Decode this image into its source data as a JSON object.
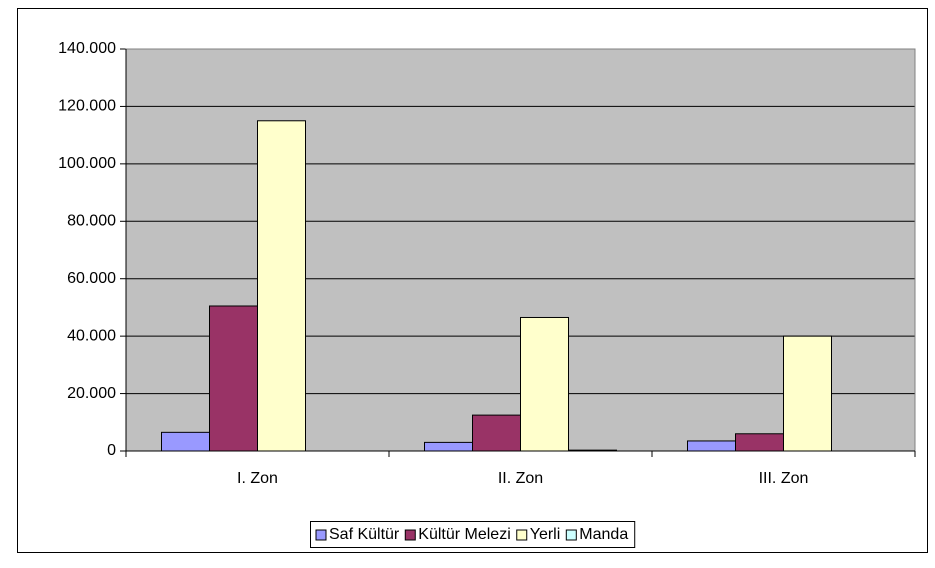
{
  "chart_data": {
    "type": "bar",
    "categories": [
      "I. Zon",
      "II. Zon",
      "III. Zon"
    ],
    "series": [
      {
        "name": "Saf Kültür",
        "color": "#9999ff",
        "values": [
          6500,
          3000,
          3500
        ]
      },
      {
        "name": "Kültür Melezi",
        "color": "#993366",
        "values": [
          50500,
          12500,
          6000
        ]
      },
      {
        "name": "Yerli",
        "color": "#ffffcc",
        "values": [
          115000,
          46500,
          40000
        ]
      },
      {
        "name": "Manda",
        "color": "#ccffff",
        "values": [
          0,
          300,
          0
        ]
      }
    ],
    "ylim": [
      0,
      140000
    ],
    "yticks": [
      0,
      {
        "value": 20000,
        "label": "20.000"
      },
      {
        "value": 40000,
        "label": "40.000"
      },
      {
        "value": 60000,
        "label": "60.000"
      },
      {
        "value": 80000,
        "label": "80.000"
      },
      {
        "value": 100000,
        "label": "100.000"
      },
      {
        "value": 120000,
        "label": "120.000"
      },
      {
        "value": 140000,
        "label": "140.000"
      }
    ],
    "grid": true,
    "legend": "bottom",
    "plot_background": "#c0c0c0"
  }
}
